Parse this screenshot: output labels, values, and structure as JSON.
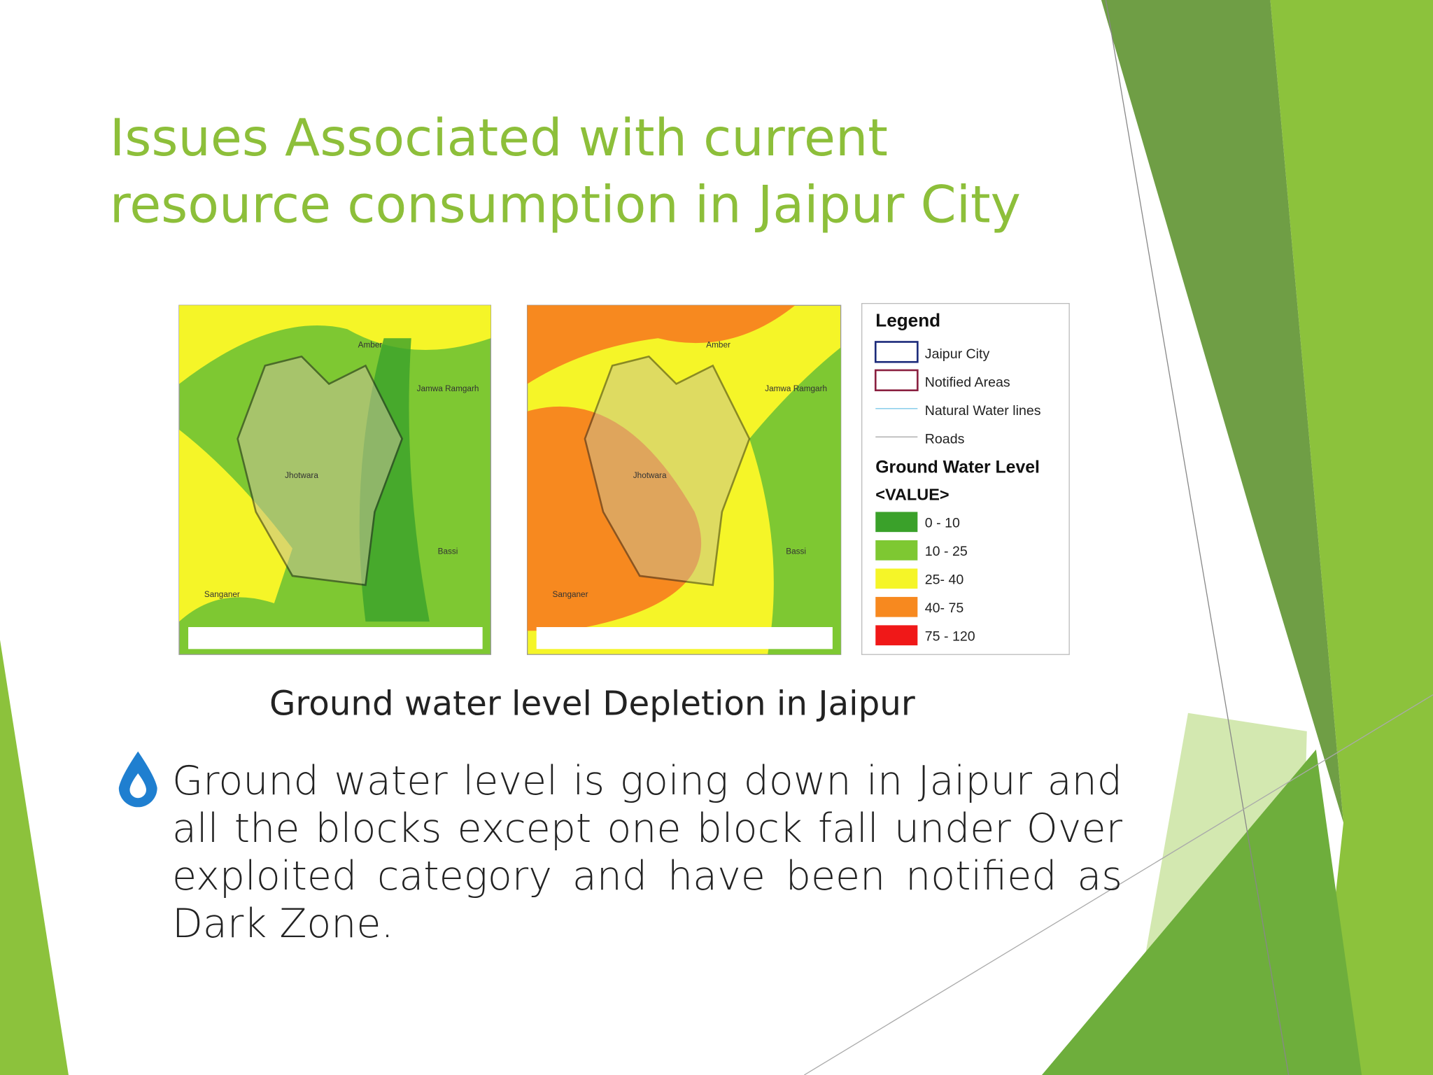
{
  "title": [
    "Issues Associated with current",
    "resource consumption in Jaipur City"
  ],
  "maps": [
    {
      "labels": [
        "Amber",
        "Jamwa Ramgarh",
        "Jhotwara",
        "Bassi",
        "Sanganer"
      ]
    },
    {
      "labels": [
        "Amber",
        "Jamwa Ramgarh",
        "Jhotwara",
        "Bassi",
        "Sanganer"
      ]
    }
  ],
  "legend": {
    "title": "Legend",
    "items": [
      "Jaipur City",
      "Notified Areas",
      "Natural Water lines",
      "Roads"
    ],
    "section_title": "Ground Water Level",
    "value_header": "<VALUE>",
    "classes": [
      {
        "label": "0 - 10",
        "color": "#3aa12a"
      },
      {
        "label": "10 - 25",
        "color": "#7ec832"
      },
      {
        "label": "25- 40",
        "color": "#f5f528"
      },
      {
        "label": "40- 75",
        "color": "#f7891f"
      },
      {
        "label": "75 - 120",
        "color": "#f01818"
      }
    ]
  },
  "caption": "Ground water level Depletion in Jaipur",
  "bullet": "Ground water level is going down in Jaipur and all the blocks except one block fall under Over exploited category and have been notified as Dark Zone."
}
